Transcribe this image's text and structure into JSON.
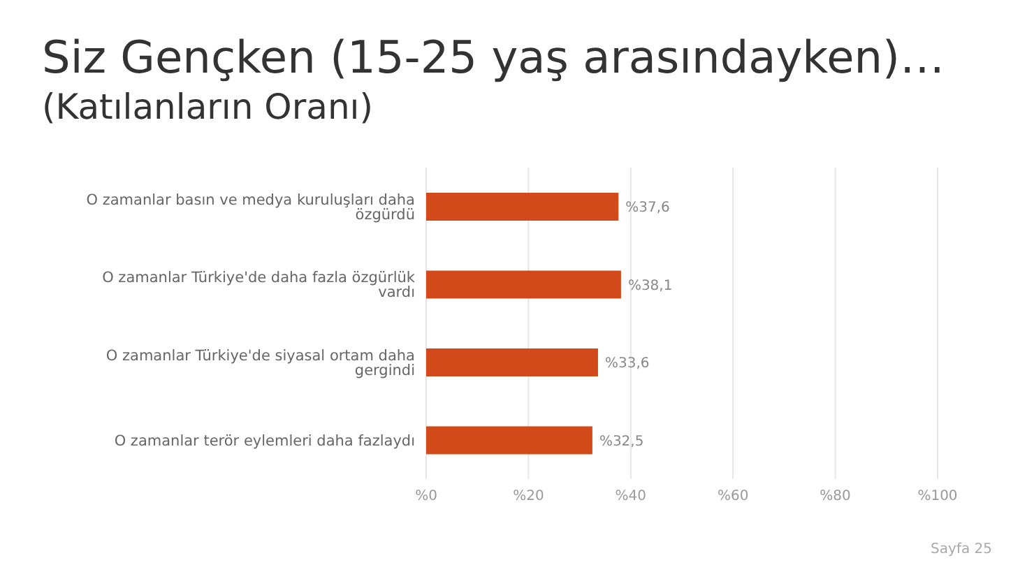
{
  "chart_data": {
    "type": "bar",
    "orientation": "horizontal",
    "title": "Siz Gençken (15-25 yaş arasındayken)…",
    "subtitle": "(Katılanların Oranı)",
    "categories": [
      "O zamanlar basın ve medya kuruluşları daha özgürdü",
      "O zamanlar Türkiye'de daha fazla özgürlük vardı",
      "O zamanlar Türkiye'de siyasal ortam daha gergindi",
      "O zamanlar terör eylemleri daha fazlaydı"
    ],
    "values": [
      37.6,
      38.1,
      33.6,
      32.5
    ],
    "value_labels": [
      "%37,6",
      "%38,1",
      "%33,6",
      "%32,5"
    ],
    "color": "#d24a1a",
    "xlim": [
      0,
      100
    ],
    "xticks": [
      {
        "value": 0,
        "label": "%0"
      },
      {
        "value": 20,
        "label": "%20"
      },
      {
        "value": 40,
        "label": "%40"
      },
      {
        "value": 60,
        "label": "%60"
      },
      {
        "value": 80,
        "label": "%80"
      },
      {
        "value": 100,
        "label": "%100"
      }
    ],
    "grid": "x",
    "legend": false,
    "annotations": [
      "Sayfa 25"
    ]
  }
}
